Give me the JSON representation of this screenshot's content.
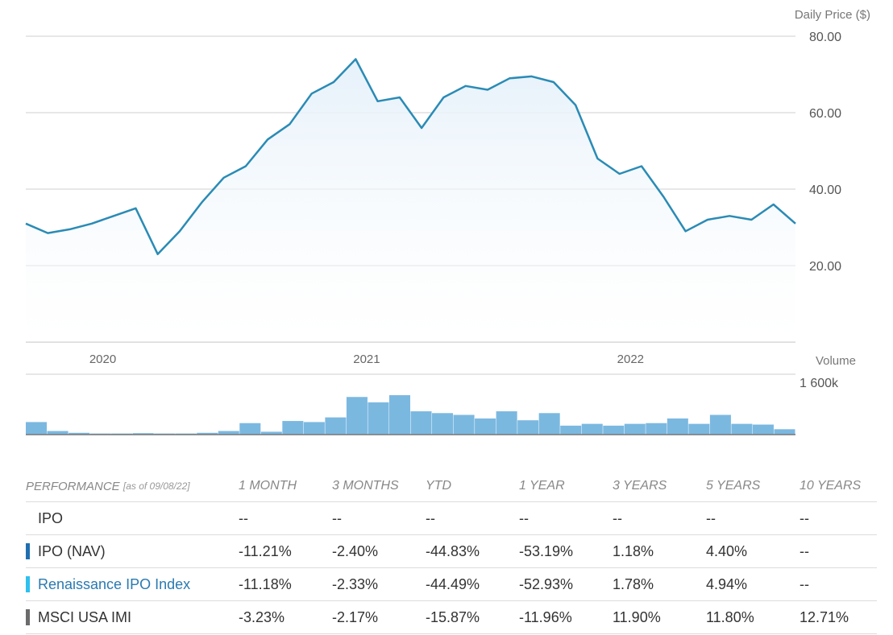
{
  "chart_data": [
    {
      "type": "line",
      "ylabel": "Daily Price ($)",
      "ylim": [
        0,
        80
      ],
      "yticks": [
        "20.00",
        "40.00",
        "60.00",
        "80.00"
      ],
      "xticks": [
        "2020",
        "2021",
        "2022"
      ],
      "xlim": [
        "2019-10",
        "2022-09"
      ],
      "grid": true,
      "series_color": "#2a8bb5",
      "fill_color": "#e6f1fa",
      "x": [
        "2019-10",
        "2019-11",
        "2019-12",
        "2020-01",
        "2020-02",
        "2020-03",
        "2020-04",
        "2020-05",
        "2020-06",
        "2020-07",
        "2020-08",
        "2020-09",
        "2020-10",
        "2020-11",
        "2020-12",
        "2021-01",
        "2021-02",
        "2021-03",
        "2021-04",
        "2021-05",
        "2021-06",
        "2021-07",
        "2021-08",
        "2021-09",
        "2021-10",
        "2021-11",
        "2021-12",
        "2022-01",
        "2022-02",
        "2022-03",
        "2022-04",
        "2022-05",
        "2022-06",
        "2022-07",
        "2022-08",
        "2022-09"
      ],
      "values": [
        31,
        28.5,
        29.5,
        31,
        33,
        35,
        23,
        29,
        36.5,
        43,
        46,
        53,
        57,
        65,
        68,
        74,
        63,
        64,
        56,
        64,
        67,
        66,
        69,
        69.5,
        68,
        62,
        48,
        44,
        46,
        38,
        29,
        32,
        33,
        32,
        36,
        31
      ]
    },
    {
      "type": "bar",
      "ylabel": "Volume",
      "yticks": [
        "1 600k"
      ],
      "x": [
        "2019-10",
        "2019-11",
        "2019-12",
        "2020-01",
        "2020-02",
        "2020-03",
        "2020-04",
        "2020-05",
        "2020-06",
        "2020-07",
        "2020-08",
        "2020-09",
        "2020-10",
        "2020-11",
        "2020-12",
        "2021-01",
        "2021-02",
        "2021-03",
        "2021-04",
        "2021-05",
        "2021-06",
        "2021-07",
        "2021-08",
        "2021-09",
        "2021-10",
        "2021-11",
        "2021-12",
        "2022-01",
        "2022-02",
        "2022-03",
        "2022-04",
        "2022-05",
        "2022-06",
        "2022-07",
        "2022-08",
        "2022-09"
      ],
      "values": [
        350,
        100,
        50,
        30,
        30,
        40,
        30,
        30,
        50,
        100,
        320,
        80,
        380,
        350,
        480,
        1050,
        900,
        1100,
        650,
        600,
        550,
        450,
        650,
        400,
        600,
        250,
        300,
        250,
        300,
        320,
        450,
        300,
        550,
        300,
        280,
        150
      ],
      "bar_color": "#7bb8e0"
    }
  ],
  "performance": {
    "header_label": "PERFORMANCE",
    "as_of": "[as of 09/08/22]",
    "columns": [
      "1 MONTH",
      "3 MONTHS",
      "YTD",
      "1 YEAR",
      "3 YEARS",
      "5 YEARS",
      "10 YEARS"
    ],
    "rows": [
      {
        "name": "IPO",
        "swatch": "",
        "values": [
          "--",
          "--",
          "--",
          "--",
          "--",
          "--",
          "--"
        ]
      },
      {
        "name": "IPO (NAV)",
        "swatch": "#1f6fb0",
        "values": [
          "-11.21%",
          "-2.40%",
          "-44.83%",
          "-53.19%",
          "1.18%",
          "4.40%",
          "--"
        ]
      },
      {
        "name": "Renaissance IPO Index",
        "swatch": "#2ec0ef",
        "values": [
          "-11.18%",
          "-2.33%",
          "-44.49%",
          "-52.93%",
          "1.78%",
          "4.94%",
          "--"
        ]
      },
      {
        "name": "MSCI USA IMI",
        "swatch": "#6b6b6b",
        "values": [
          "-3.23%",
          "-2.17%",
          "-15.87%",
          "-11.96%",
          "11.90%",
          "11.80%",
          "12.71%"
        ]
      }
    ]
  }
}
